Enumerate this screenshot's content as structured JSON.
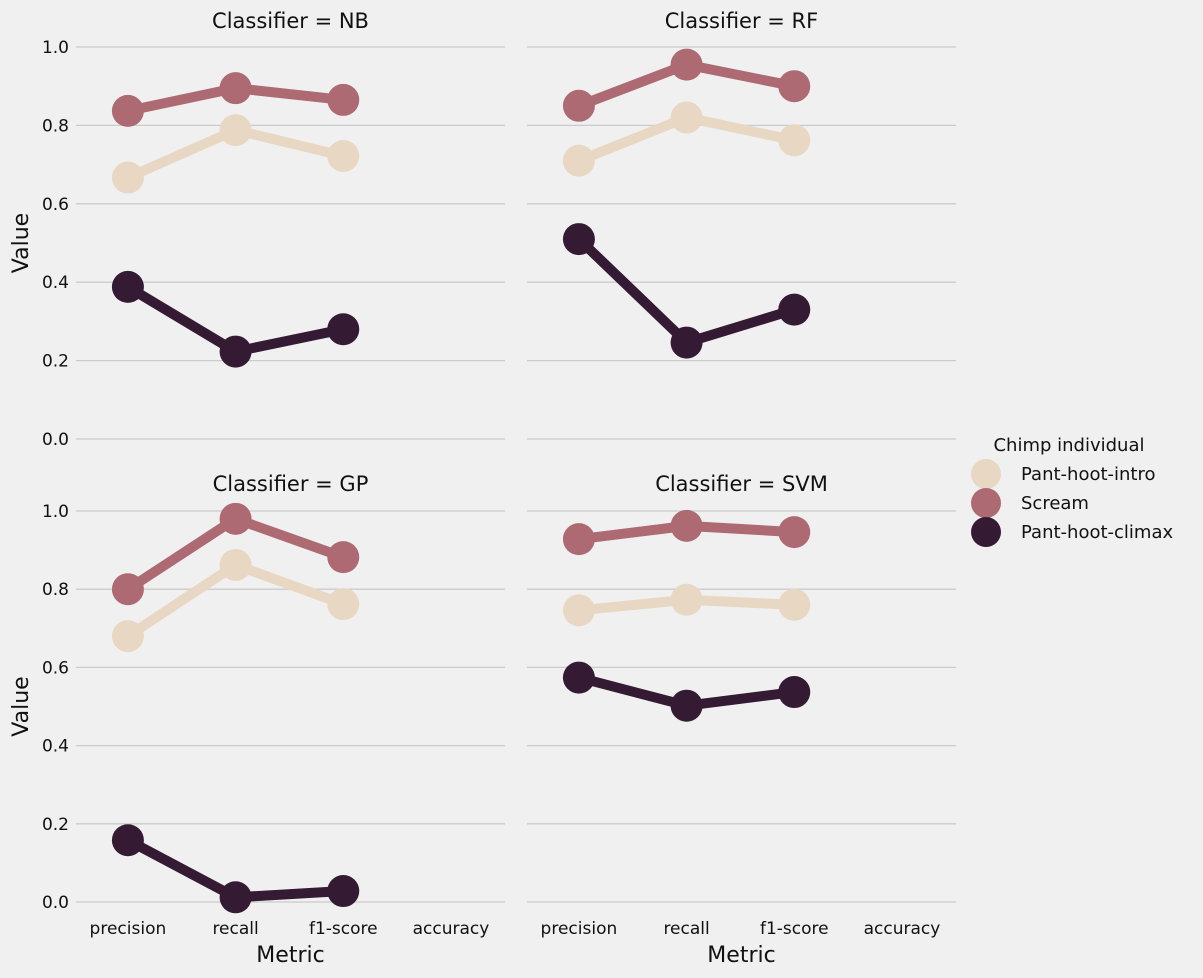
{
  "chart_data": [
    {
      "type": "line",
      "title": "Classifier = NB",
      "xlabel": "",
      "ylabel": "Value",
      "categories": [
        "precision",
        "recall",
        "f1-score",
        "accuracy"
      ],
      "ylim": [
        0,
        1.0
      ],
      "yticks": [
        "0.0",
        "0.2",
        "0.4",
        "0.6",
        "0.8",
        "1.0"
      ],
      "series": [
        {
          "name": "Pant-hoot-intro",
          "values": [
            0.667,
            0.788,
            0.722,
            null
          ]
        },
        {
          "name": "Scream",
          "values": [
            0.837,
            0.895,
            0.865,
            null
          ]
        },
        {
          "name": "Pant-hoot-climax",
          "values": [
            0.388,
            0.223,
            0.28,
            null
          ]
        }
      ]
    },
    {
      "type": "line",
      "title": "Classifier = RF",
      "xlabel": "",
      "ylabel": "",
      "categories": [
        "precision",
        "recall",
        "f1-score",
        "accuracy"
      ],
      "ylim": [
        0,
        1.0
      ],
      "series": [
        {
          "name": "Pant-hoot-intro",
          "values": [
            0.71,
            0.82,
            0.762,
            null
          ]
        },
        {
          "name": "Scream",
          "values": [
            0.85,
            0.955,
            0.9,
            null
          ]
        },
        {
          "name": "Pant-hoot-climax",
          "values": [
            0.51,
            0.246,
            0.33,
            null
          ]
        }
      ]
    },
    {
      "type": "line",
      "title": "Classifier = GP",
      "xlabel": "Metric",
      "ylabel": "Value",
      "categories": [
        "precision",
        "recall",
        "f1-score",
        "accuracy"
      ],
      "ylim": [
        0,
        1.0
      ],
      "yticks": [
        "0.0",
        "0.2",
        "0.4",
        "0.6",
        "0.8",
        "1.0"
      ],
      "series": [
        {
          "name": "Pant-hoot-intro",
          "values": [
            0.68,
            0.862,
            0.762,
            null
          ]
        },
        {
          "name": "Scream",
          "values": [
            0.8,
            0.98,
            0.882,
            null
          ]
        },
        {
          "name": "Pant-hoot-climax",
          "values": [
            0.158,
            0.012,
            0.028,
            null
          ]
        }
      ]
    },
    {
      "type": "line",
      "title": "Classifier = SVM",
      "xlabel": "Metric",
      "ylabel": "",
      "categories": [
        "precision",
        "recall",
        "f1-score",
        "accuracy"
      ],
      "ylim": [
        0,
        1.0
      ],
      "series": [
        {
          "name": "Pant-hoot-intro",
          "values": [
            0.746,
            0.773,
            0.76,
            null
          ]
        },
        {
          "name": "Scream",
          "values": [
            0.928,
            0.962,
            0.946,
            null
          ]
        },
        {
          "name": "Pant-hoot-climax",
          "values": [
            0.574,
            0.502,
            0.537,
            null
          ]
        }
      ]
    }
  ],
  "legend": {
    "title": "Chimp individual",
    "placement": "right",
    "entries": [
      {
        "label": "Pant-hoot-intro",
        "color": "#e8d8c3"
      },
      {
        "label": "Scream",
        "color": "#ad6a72"
      },
      {
        "label": "Pant-hoot-climax",
        "color": "#341a33"
      }
    ]
  },
  "style": {
    "background": "#f0f0f0",
    "grid": true,
    "grid_color": "#cbcbcb"
  }
}
